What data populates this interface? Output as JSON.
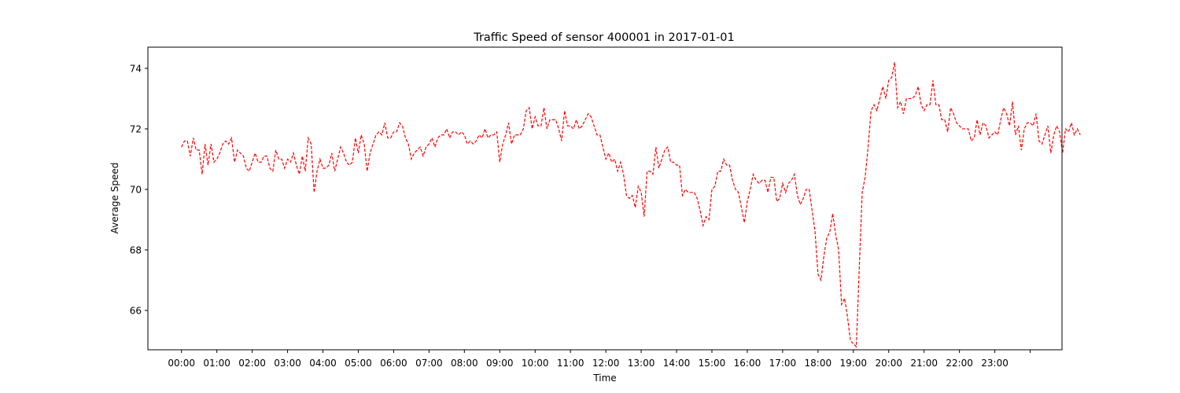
{
  "chart_data": {
    "type": "line",
    "title": "Traffic Speed of sensor 400001 in 2017-01-01",
    "xlabel": "Time",
    "ylabel": "Average Speed",
    "ylim": [
      64.7,
      74.7
    ],
    "yticks": [
      66,
      68,
      70,
      72,
      74
    ],
    "xlim_minutes": [
      -57,
      1494
    ],
    "xtick_labels": [
      "00:00",
      "01:00",
      "02:00",
      "03:00",
      "04:00",
      "05:00",
      "06:00",
      "07:00",
      "08:00",
      "09:00",
      "10:00",
      "11:00",
      "12:00",
      "13:00",
      "14:00",
      "15:00",
      "16:00",
      "17:00",
      "18:00",
      "19:00",
      "20:00",
      "21:00",
      "22:00",
      "23:00",
      ""
    ],
    "grid": false,
    "line_color": "#ff0000",
    "line_style": "dashed",
    "series": [
      {
        "x_minutes_start": 0,
        "x_minutes_step": 5,
        "values": [
          71.4,
          71.6,
          71.6,
          71.1,
          71.7,
          71.3,
          71.3,
          70.5,
          71.5,
          70.8,
          71.5,
          70.9,
          71.0,
          71.2,
          71.5,
          71.6,
          71.5,
          71.7,
          70.9,
          71.3,
          71.2,
          71.1,
          70.7,
          70.6,
          70.9,
          71.2,
          70.9,
          70.9,
          71.1,
          71.1,
          70.7,
          70.6,
          71.3,
          71.0,
          71.0,
          70.7,
          71.0,
          70.9,
          71.2,
          70.8,
          70.5,
          71.1,
          70.6,
          71.7,
          71.5,
          69.9,
          70.6,
          71.0,
          70.7,
          70.7,
          70.8,
          71.2,
          70.6,
          71.0,
          71.4,
          71.2,
          70.9,
          70.8,
          70.9,
          71.7,
          71.2,
          71.8,
          71.5,
          70.6,
          71.2,
          71.5,
          71.8,
          71.9,
          71.8,
          72.2,
          71.7,
          71.7,
          71.9,
          71.9,
          72.2,
          72.1,
          71.7,
          71.5,
          71.0,
          71.2,
          71.3,
          71.4,
          71.1,
          71.4,
          71.5,
          71.7,
          71.4,
          71.7,
          71.8,
          71.8,
          72.0,
          71.7,
          71.9,
          71.9,
          71.8,
          71.9,
          71.8,
          71.5,
          71.6,
          71.5,
          71.6,
          71.8,
          71.7,
          72.0,
          71.7,
          71.8,
          71.8,
          71.9,
          70.9,
          71.5,
          71.8,
          72.2,
          71.5,
          71.8,
          71.8,
          71.8,
          72.0,
          72.6,
          72.7,
          72.0,
          72.4,
          72.1,
          72.1,
          72.7,
          72.0,
          72.3,
          72.3,
          72.3,
          72.0,
          71.6,
          72.6,
          72.1,
          72.1,
          72.0,
          72.3,
          72.0,
          72.1,
          72.3,
          72.5,
          72.4,
          72.1,
          71.8,
          71.8,
          71.4,
          71.0,
          71.2,
          70.9,
          71.0,
          70.6,
          70.9,
          70.5,
          69.8,
          69.7,
          69.8,
          69.4,
          70.1,
          69.9,
          69.1,
          70.6,
          70.6,
          70.5,
          71.4,
          70.7,
          71.0,
          71.3,
          71.4,
          70.9,
          70.9,
          70.8,
          70.8,
          69.8,
          70.0,
          69.9,
          69.9,
          69.9,
          69.7,
          69.3,
          68.8,
          69.1,
          69.0,
          70.0,
          70.1,
          70.6,
          70.6,
          71.0,
          70.8,
          70.8,
          70.3,
          70.0,
          69.9,
          69.4,
          68.9,
          69.6,
          70.0,
          70.5,
          70.3,
          70.2,
          70.3,
          70.3,
          69.9,
          70.4,
          70.4,
          69.6,
          69.7,
          70.2,
          69.9,
          70.2,
          70.3,
          70.5,
          69.8,
          69.5,
          69.7,
          70.0,
          70.0,
          69.3,
          68.6,
          67.2,
          67.0,
          67.8,
          68.4,
          68.6,
          69.2,
          68.5,
          68.0,
          66.2,
          66.4,
          65.8,
          65.0,
          64.9,
          64.8,
          67.4,
          69.9,
          70.4,
          71.4,
          72.6,
          72.8,
          72.6,
          73.0,
          73.4,
          73.0,
          73.6,
          73.7,
          74.2,
          72.7,
          72.9,
          72.5,
          73.0,
          73.0,
          73.0,
          73.1,
          73.4,
          72.8,
          72.6,
          72.8,
          72.8,
          73.6,
          72.8,
          72.8,
          72.3,
          72.3,
          71.9,
          72.7,
          72.5,
          72.2,
          72.1,
          72.0,
          72.0,
          72.0,
          71.6,
          71.7,
          72.3,
          71.8,
          72.2,
          72.1,
          71.7,
          71.8,
          71.9,
          71.8,
          72.3,
          72.7,
          72.5,
          72.1,
          72.9,
          71.8,
          72.1,
          71.3,
          72.0,
          72.2,
          72.2,
          72.1,
          72.5,
          71.6,
          71.5,
          71.8,
          72.1,
          71.2,
          71.8,
          72.1,
          71.9,
          71.2,
          72.0,
          71.9,
          72.2,
          71.8,
          72.0,
          71.8
        ]
      }
    ]
  }
}
